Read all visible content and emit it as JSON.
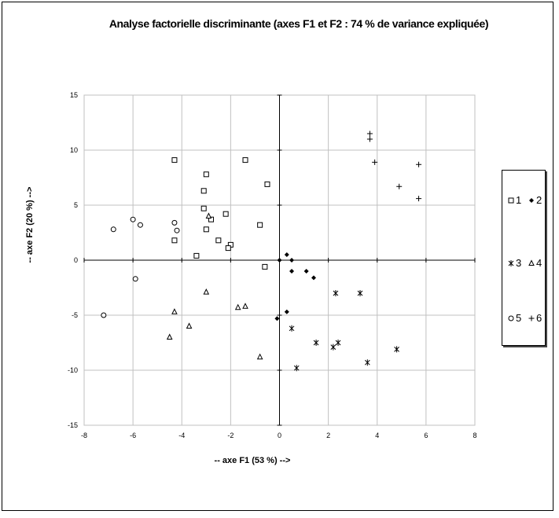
{
  "chart_data": {
    "type": "scatter",
    "title": "Analyse factorielle discriminante (axes F1 et F2 : 74 % de variance expliquée)",
    "xlabel": "-- axe F1 (53 %) -->",
    "ylabel": "-- axe F2 (20 %) -->",
    "xlim": [
      -8,
      8
    ],
    "ylim": [
      -15,
      15
    ],
    "xticks": [
      -8,
      -6,
      -4,
      -2,
      0,
      2,
      4,
      6,
      8
    ],
    "yticks": [
      -15,
      -10,
      -5,
      0,
      5,
      10,
      15
    ],
    "grid": true,
    "legend_position": "right",
    "series": [
      {
        "name": "1",
        "marker": "square",
        "points": [
          [
            -4.3,
            9.1
          ],
          [
            -3.0,
            7.8
          ],
          [
            -1.4,
            9.1
          ],
          [
            -0.5,
            6.9
          ],
          [
            -3.1,
            6.3
          ],
          [
            -3.1,
            4.7
          ],
          [
            -2.2,
            4.2
          ],
          [
            -2.8,
            3.7
          ],
          [
            -3.0,
            2.8
          ],
          [
            -0.8,
            3.2
          ],
          [
            -4.3,
            1.8
          ],
          [
            -2.5,
            1.8
          ],
          [
            -2.0,
            1.4
          ],
          [
            -2.1,
            1.1
          ],
          [
            -3.4,
            0.4
          ],
          [
            -0.6,
            -0.6
          ]
        ]
      },
      {
        "name": "2",
        "marker": "diamond",
        "points": [
          [
            0.3,
            0.5
          ],
          [
            0.0,
            0.0
          ],
          [
            0.5,
            0.0
          ],
          [
            0.5,
            -1.0
          ],
          [
            1.1,
            -1.0
          ],
          [
            1.4,
            -1.6
          ],
          [
            0.3,
            -4.7
          ],
          [
            -0.1,
            -5.3
          ]
        ]
      },
      {
        "name": "3",
        "marker": "asterisk",
        "points": [
          [
            2.3,
            -3.0
          ],
          [
            3.3,
            -3.0
          ],
          [
            0.5,
            -6.2
          ],
          [
            1.5,
            -7.5
          ],
          [
            2.4,
            -7.5
          ],
          [
            2.2,
            -7.9
          ],
          [
            0.7,
            -9.8
          ],
          [
            3.6,
            -9.3
          ],
          [
            4.8,
            -8.1
          ]
        ]
      },
      {
        "name": "4",
        "marker": "triangle",
        "points": [
          [
            -2.9,
            4.0
          ],
          [
            -3.0,
            -2.9
          ],
          [
            -1.7,
            -4.3
          ],
          [
            -1.4,
            -4.2
          ],
          [
            -4.3,
            -4.7
          ],
          [
            -3.7,
            -6.0
          ],
          [
            -4.5,
            -7.0
          ],
          [
            -0.8,
            -8.8
          ]
        ]
      },
      {
        "name": "5",
        "marker": "circle",
        "points": [
          [
            -6.8,
            2.8
          ],
          [
            -6.0,
            3.7
          ],
          [
            -5.7,
            3.2
          ],
          [
            -4.3,
            3.4
          ],
          [
            -4.2,
            2.7
          ],
          [
            -5.9,
            -1.7
          ],
          [
            -7.2,
            -5.0
          ]
        ]
      },
      {
        "name": "6",
        "marker": "plus",
        "points": [
          [
            3.7,
            11.5
          ],
          [
            3.7,
            11.0
          ],
          [
            3.9,
            8.9
          ],
          [
            5.7,
            8.7
          ],
          [
            4.9,
            6.7
          ],
          [
            5.7,
            5.6
          ]
        ]
      }
    ]
  }
}
